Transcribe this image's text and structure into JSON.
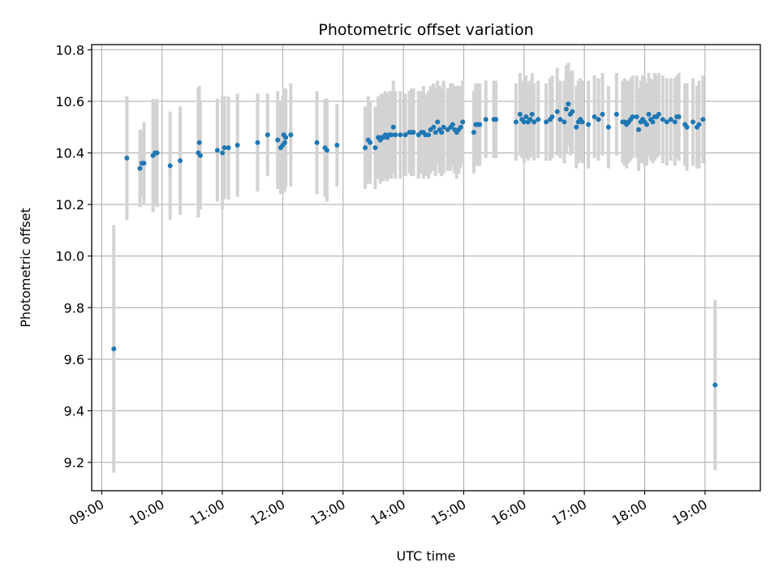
{
  "chart_data": {
    "type": "scatter",
    "title": "Photometric offset variation",
    "xlabel": "UTC time",
    "ylabel": "Photometric offset",
    "x_tick_labels": [
      "09:00",
      "10:00",
      "11:00",
      "12:00",
      "13:00",
      "14:00",
      "15:00",
      "16:00",
      "17:00",
      "18:00",
      "19:00"
    ],
    "x_ticks": [
      "09:00",
      "10:00",
      "11:00",
      "12:00",
      "13:00",
      "14:00",
      "15:00",
      "16:00",
      "17:00",
      "18:00",
      "19:00"
    ],
    "y_tick_labels": [
      "9.2",
      "9.4",
      "9.6",
      "9.8",
      "10.0",
      "10.2",
      "10.4",
      "10.6",
      "10.8"
    ],
    "y_ticks": [
      9.2,
      9.4,
      9.6,
      9.8,
      10.0,
      10.2,
      10.4,
      10.6,
      10.8
    ],
    "xlim": [
      "08:50",
      "19:55"
    ],
    "ylim": [
      9.09,
      10.82
    ],
    "grid": true,
    "colors": {
      "points": "#1f77b4",
      "errorbars": "#d3d3d3",
      "grid": "#b0b0b0",
      "axes": "#000000"
    },
    "series": [
      {
        "x": [
          "09:12",
          "09:25",
          "09:38",
          "09:40",
          "09:42",
          "09:51",
          "09:53",
          "09:55",
          "10:08",
          "10:18",
          "10:36",
          "10:37",
          "10:38",
          "10:55",
          "11:00",
          "11:02",
          "11:06",
          "11:15",
          "11:35",
          "11:45",
          "11:55",
          "11:58",
          "12:00",
          "12:01",
          "12:02",
          "12:03",
          "12:08",
          "12:34",
          "12:42",
          "12:44",
          "12:54",
          "13:22",
          "13:25",
          "13:27",
          "13:32",
          "13:35",
          "13:37",
          "13:38",
          "13:40",
          "13:42",
          "13:44",
          "13:46",
          "13:48",
          "13:50",
          "13:52",
          "13:57",
          "14:02",
          "14:06",
          "14:08",
          "14:10",
          "14:15",
          "14:18",
          "14:20",
          "14:22",
          "14:25",
          "14:27",
          "14:30",
          "14:32",
          "14:34",
          "14:36",
          "14:38",
          "14:40",
          "14:44",
          "14:47",
          "14:49",
          "14:51",
          "14:53",
          "14:55",
          "14:57",
          "14:59",
          "15:10",
          "15:12",
          "15:14",
          "15:16",
          "15:22",
          "15:30",
          "15:32",
          "15:52",
          "15:56",
          "15:58",
          "16:00",
          "16:02",
          "16:04",
          "16:06",
          "16:08",
          "16:10",
          "16:14",
          "16:22",
          "16:26",
          "16:28",
          "16:33",
          "16:36",
          "16:40",
          "16:42",
          "16:44",
          "16:46",
          "16:48",
          "16:52",
          "16:54",
          "16:56",
          "16:58",
          "17:04",
          "17:10",
          "17:14",
          "17:18",
          "17:24",
          "17:32",
          "17:38",
          "17:40",
          "17:42",
          "17:44",
          "17:46",
          "17:48",
          "17:52",
          "17:54",
          "17:56",
          "17:58",
          "18:00",
          "18:02",
          "18:04",
          "18:06",
          "18:08",
          "18:10",
          "18:12",
          "18:14",
          "18:18",
          "18:22",
          "18:26",
          "18:30",
          "18:32",
          "18:34",
          "18:40",
          "18:42",
          "18:48",
          "18:52",
          "18:54",
          "18:58",
          "19:10"
        ],
        "y": [
          9.64,
          10.38,
          10.34,
          10.36,
          10.36,
          10.39,
          10.4,
          10.4,
          10.35,
          10.37,
          10.4,
          10.44,
          10.39,
          10.41,
          10.4,
          10.42,
          10.42,
          10.43,
          10.44,
          10.47,
          10.45,
          10.42,
          10.43,
          10.47,
          10.44,
          10.46,
          10.47,
          10.44,
          10.42,
          10.41,
          10.43,
          10.42,
          10.45,
          10.44,
          10.42,
          10.46,
          10.45,
          10.46,
          10.46,
          10.47,
          10.46,
          10.47,
          10.47,
          10.5,
          10.47,
          10.47,
          10.47,
          10.48,
          10.48,
          10.48,
          10.47,
          10.48,
          10.48,
          10.47,
          10.47,
          10.49,
          10.5,
          10.48,
          10.52,
          10.49,
          10.48,
          10.5,
          10.49,
          10.5,
          10.51,
          10.49,
          10.48,
          10.49,
          10.5,
          10.52,
          10.48,
          10.51,
          10.51,
          10.51,
          10.53,
          10.53,
          10.53,
          10.52,
          10.55,
          10.53,
          10.52,
          10.54,
          10.52,
          10.53,
          10.55,
          10.52,
          10.53,
          10.52,
          10.53,
          10.54,
          10.56,
          10.53,
          10.52,
          10.57,
          10.59,
          10.55,
          10.56,
          10.5,
          10.52,
          10.53,
          10.52,
          10.51,
          10.54,
          10.53,
          10.55,
          10.5,
          10.55,
          10.52,
          10.52,
          10.51,
          10.52,
          10.53,
          10.54,
          10.54,
          10.49,
          10.52,
          10.53,
          10.52,
          10.51,
          10.55,
          10.53,
          10.52,
          10.54,
          10.54,
          10.55,
          10.53,
          10.52,
          10.53,
          10.52,
          10.54,
          10.54,
          10.51,
          10.5,
          10.52,
          10.5,
          10.51,
          10.53,
          9.5
        ],
        "err": [
          0.48,
          0.24,
          0.15,
          0.13,
          0.16,
          0.22,
          0.2,
          0.21,
          0.21,
          0.21,
          0.25,
          0.22,
          0.21,
          0.2,
          0.22,
          0.2,
          0.2,
          0.2,
          0.19,
          0.16,
          0.19,
          0.18,
          0.19,
          0.18,
          0.19,
          0.19,
          0.2,
          0.2,
          0.19,
          0.2,
          0.16,
          0.16,
          0.17,
          0.16,
          0.16,
          0.16,
          0.17,
          0.17,
          0.17,
          0.17,
          0.17,
          0.17,
          0.17,
          0.18,
          0.17,
          0.17,
          0.16,
          0.16,
          0.17,
          0.17,
          0.17,
          0.16,
          0.18,
          0.16,
          0.17,
          0.17,
          0.17,
          0.17,
          0.16,
          0.17,
          0.17,
          0.18,
          0.16,
          0.17,
          0.16,
          0.17,
          0.18,
          0.17,
          0.16,
          0.16,
          0.16,
          0.16,
          0.16,
          0.16,
          0.15,
          0.15,
          0.15,
          0.15,
          0.16,
          0.15,
          0.16,
          0.16,
          0.15,
          0.15,
          0.16,
          0.15,
          0.15,
          0.15,
          0.16,
          0.16,
          0.17,
          0.15,
          0.16,
          0.17,
          0.16,
          0.16,
          0.16,
          0.16,
          0.16,
          0.16,
          0.16,
          0.17,
          0.16,
          0.16,
          0.16,
          0.16,
          0.16,
          0.16,
          0.17,
          0.17,
          0.16,
          0.16,
          0.16,
          0.16,
          0.16,
          0.16,
          0.17,
          0.17,
          0.16,
          0.16,
          0.16,
          0.16,
          0.17,
          0.16,
          0.16,
          0.17,
          0.17,
          0.16,
          0.17,
          0.16,
          0.17,
          0.16,
          0.17,
          0.17,
          0.16,
          0.17,
          0.17,
          0.33
        ]
      }
    ]
  }
}
